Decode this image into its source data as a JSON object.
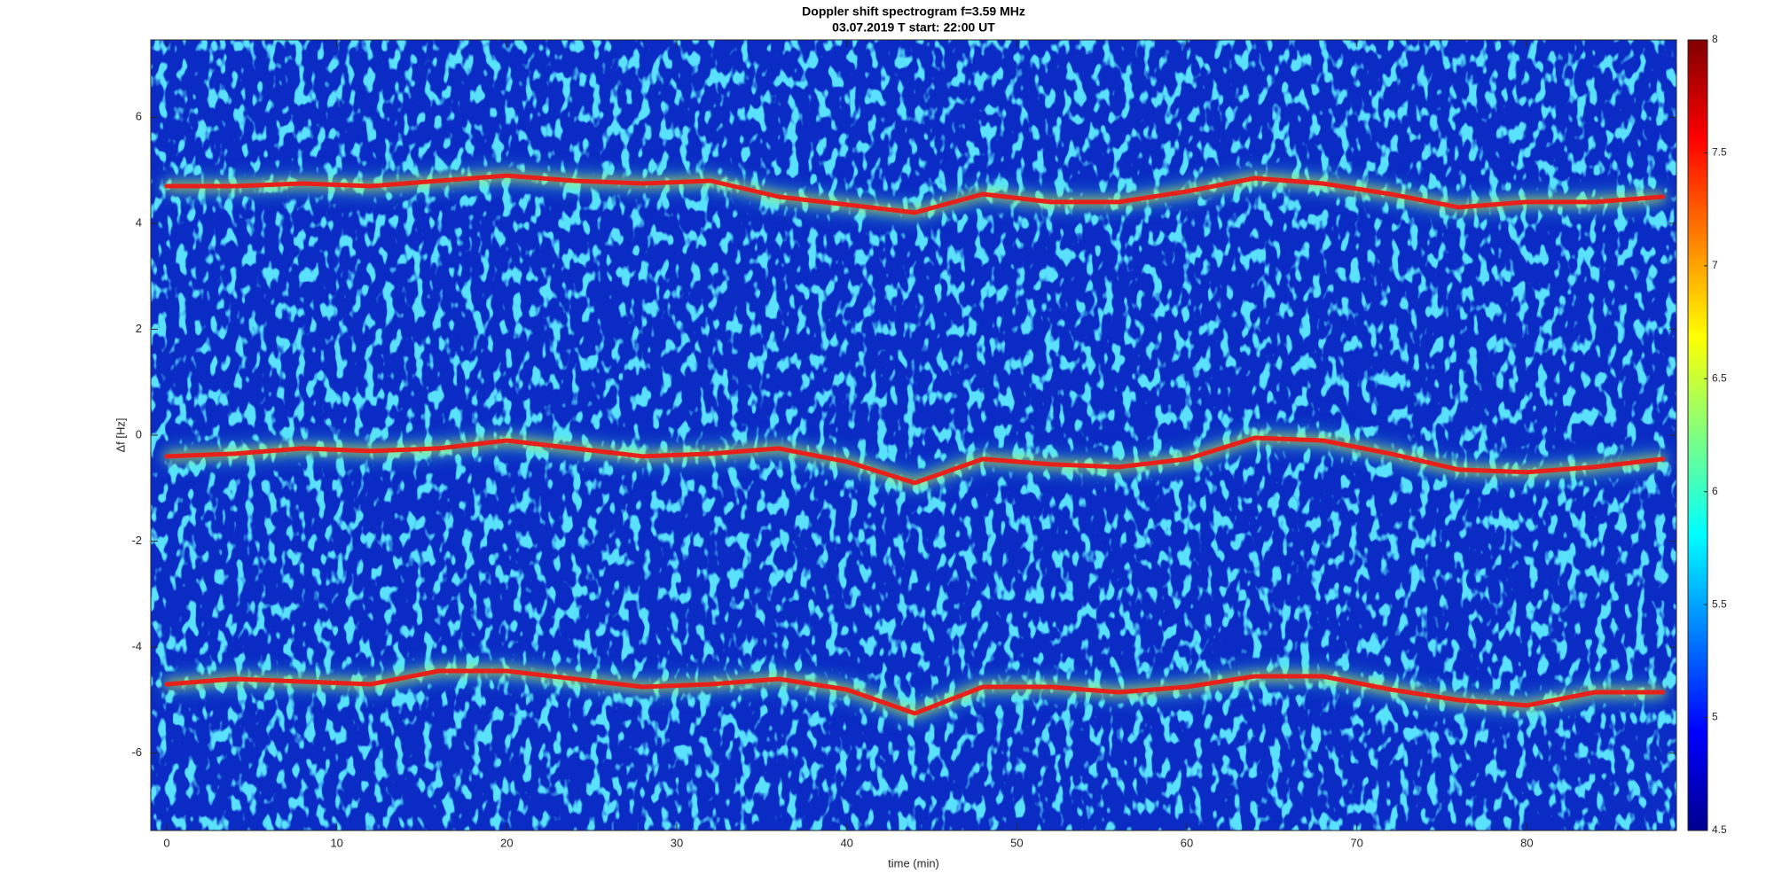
{
  "chart_data": {
    "type": "spectrogram",
    "title": "Doppler shift spectrogram f=3.59 MHz",
    "subtitle": "03.07.2019   T start: 22:00 UT",
    "x_label": "time (min)",
    "y_label": "Δf [Hz]",
    "x": [
      0,
      4,
      8,
      12,
      16,
      20,
      24,
      28,
      32,
      36,
      40,
      44,
      48,
      52,
      56,
      60,
      64,
      68,
      72,
      76,
      80,
      84,
      88
    ],
    "series": [
      {
        "color": "#e8201a",
        "values": [
          4.7,
          4.7,
          4.75,
          4.7,
          4.8,
          4.9,
          4.8,
          4.75,
          4.8,
          4.5,
          4.35,
          4.2,
          4.55,
          4.4,
          4.4,
          4.6,
          4.85,
          4.75,
          4.55,
          4.3,
          4.4,
          4.4,
          4.5
        ]
      },
      {
        "color": "#e8201a",
        "values": [
          -0.4,
          -0.35,
          -0.25,
          -0.3,
          -0.25,
          -0.1,
          -0.25,
          -0.4,
          -0.35,
          -0.25,
          -0.5,
          -0.9,
          -0.45,
          -0.55,
          -0.6,
          -0.45,
          -0.05,
          -0.1,
          -0.35,
          -0.65,
          -0.7,
          -0.6,
          -0.45
        ]
      },
      {
        "color": "#e8201a",
        "values": [
          -4.7,
          -4.6,
          -4.65,
          -4.7,
          -4.45,
          -4.45,
          -4.6,
          -4.75,
          -4.7,
          -4.6,
          -4.8,
          -5.25,
          -4.75,
          -4.75,
          -4.85,
          -4.75,
          -4.55,
          -4.55,
          -4.8,
          -5.0,
          -5.1,
          -4.85,
          -4.85
        ]
      }
    ],
    "xlim": [
      -0.94,
      88.8
    ],
    "xticks": [
      0,
      10,
      20,
      30,
      40,
      50,
      60,
      70,
      80
    ],
    "ylim": [
      -7.46,
      7.46
    ],
    "yticks": [
      -6,
      -4,
      -2,
      0,
      2,
      4,
      6
    ],
    "colormap": "jet",
    "clim": [
      4.5,
      8
    ],
    "cticks": [
      4.5,
      5,
      5.5,
      6,
      6.5,
      7,
      7.5,
      8
    ]
  }
}
